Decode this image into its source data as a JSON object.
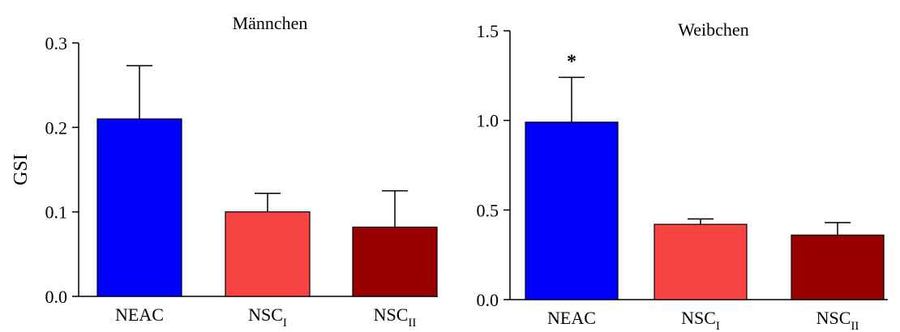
{
  "chart_data": [
    {
      "type": "bar",
      "title": "Männchen",
      "ylabel": "GSI",
      "categories": [
        {
          "main": "NEAC",
          "sub": ""
        },
        {
          "main": "NSC",
          "sub": "I"
        },
        {
          "main": "NSC",
          "sub": "II"
        }
      ],
      "values": [
        0.21,
        0.1,
        0.082
      ],
      "error_upper": [
        0.273,
        0.122,
        0.125
      ],
      "colors": [
        "#0000ff",
        "#f94444",
        "#990000"
      ],
      "ylim": [
        0,
        0.3
      ],
      "yticks": [
        "0.0",
        "0.1",
        "0.2",
        "0.3"
      ],
      "annotations": []
    },
    {
      "type": "bar",
      "title": "Weibchen",
      "ylabel": "",
      "categories": [
        {
          "main": "NEAC",
          "sub": ""
        },
        {
          "main": "NSC",
          "sub": "I"
        },
        {
          "main": "NSC",
          "sub": "II"
        }
      ],
      "values": [
        0.99,
        0.42,
        0.36
      ],
      "error_upper": [
        1.24,
        0.45,
        0.43
      ],
      "colors": [
        "#0000ff",
        "#f94444",
        "#990000"
      ],
      "ylim": [
        0,
        1.5
      ],
      "yticks": [
        "0.0",
        "0.5",
        "1.0",
        "1.5"
      ],
      "annotations": [
        {
          "category_index": 0,
          "text": "*"
        }
      ]
    }
  ]
}
